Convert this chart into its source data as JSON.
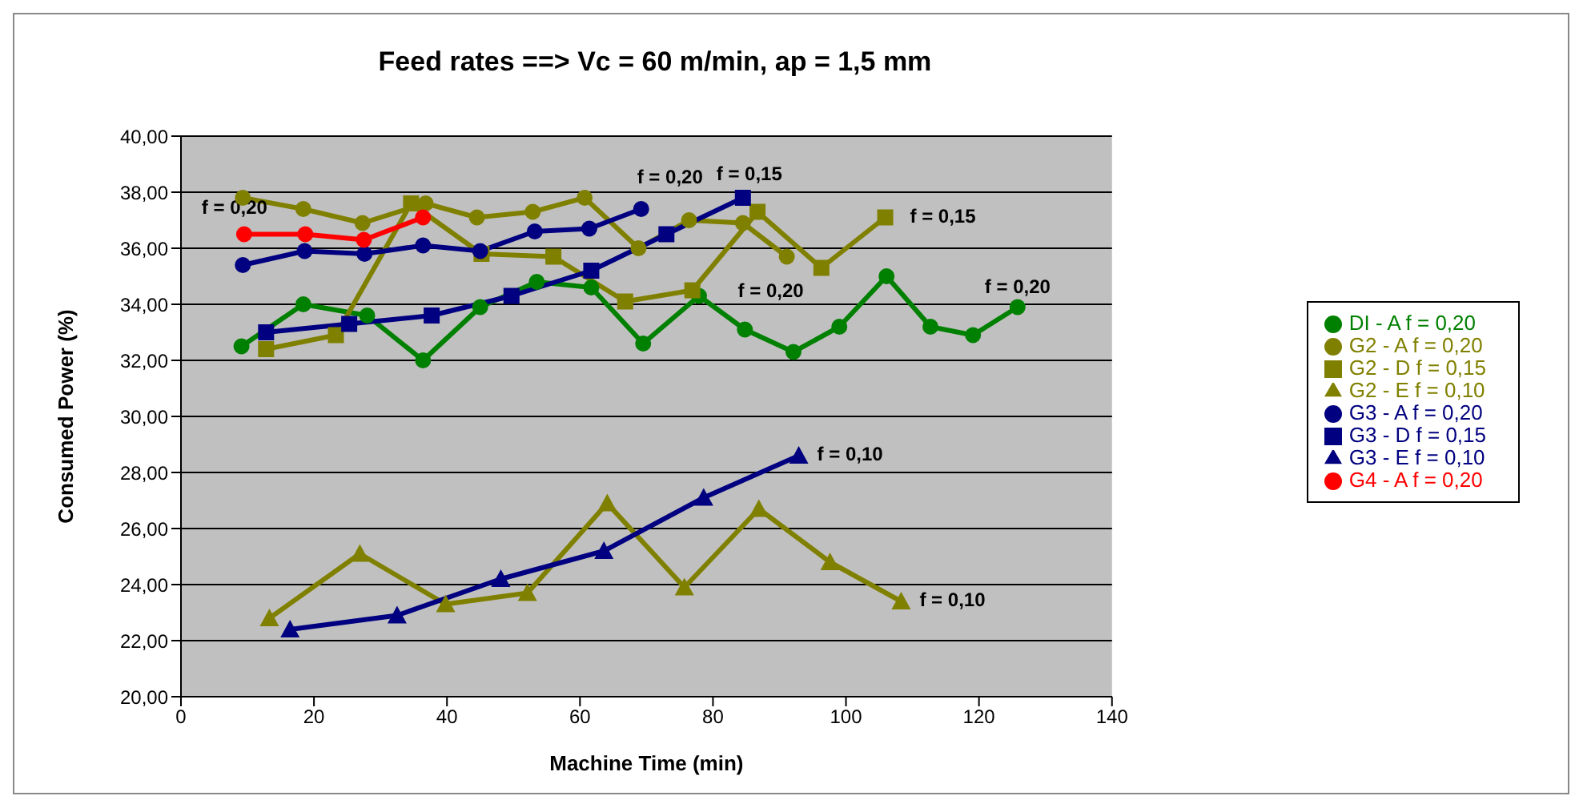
{
  "chart_data": {
    "type": "line",
    "title": "Feed rates ==> Vc = 60 m/min, ap = 1,5 mm",
    "xlabel": "Machine Time (min)",
    "ylabel": "Consumed Power (%)",
    "xlim": [
      0,
      140
    ],
    "xticks": [
      0,
      20,
      40,
      60,
      80,
      100,
      120,
      140
    ],
    "ylim": [
      20,
      40
    ],
    "yticks": [
      {
        "value": 20,
        "label": "20,00"
      },
      {
        "value": 22,
        "label": "22,00"
      },
      {
        "value": 24,
        "label": "24,00"
      },
      {
        "value": 26,
        "label": "26,00"
      },
      {
        "value": 28,
        "label": "28,00"
      },
      {
        "value": 30,
        "label": "30,00"
      },
      {
        "value": 32,
        "label": "32,00"
      },
      {
        "value": 34,
        "label": "34,00"
      },
      {
        "value": 36,
        "label": "36,00"
      },
      {
        "value": 38,
        "label": "38,00"
      },
      {
        "value": 40,
        "label": "40,00"
      }
    ],
    "grid": "y",
    "legend": "right",
    "series": [
      {
        "name": "DI - A f = 0,20",
        "color": "#008000",
        "marker": "circle",
        "x": [
          9.1,
          18.4,
          28.0,
          36.4,
          45.0,
          53.5,
          61.7,
          69.5,
          77.9,
          84.8,
          92.1,
          99.0,
          106.1,
          112.7,
          119.1,
          125.8
        ],
        "values": [
          32.5,
          34.0,
          33.6,
          32.0,
          33.9,
          34.8,
          34.6,
          32.6,
          34.3,
          33.1,
          32.3,
          33.2,
          35.0,
          33.2,
          32.9,
          33.9
        ]
      },
      {
        "name": "G2 - A f = 0,20",
        "color": "#808000",
        "marker": "circle",
        "x": [
          9.3,
          18.4,
          27.3,
          36.8,
          44.5,
          52.9,
          60.7,
          68.8,
          76.4,
          84.5,
          91.1
        ],
        "values": [
          37.8,
          37.4,
          36.9,
          37.6,
          37.1,
          37.3,
          37.8,
          36.0,
          37.0,
          36.9,
          35.7
        ]
      },
      {
        "name": "G2 - D f = 0,15",
        "color": "#808000",
        "marker": "square",
        "x": [
          12.8,
          23.3,
          34.6,
          45.2,
          56.0,
          66.8,
          76.9,
          86.7,
          96.3,
          105.9
        ],
        "values": [
          32.4,
          32.9,
          37.6,
          35.8,
          35.7,
          34.1,
          34.5,
          37.3,
          35.3,
          37.1
        ]
      },
      {
        "name": "G2 - E f = 0,10",
        "color": "#808000",
        "marker": "triangle",
        "x": [
          13.3,
          26.9,
          39.8,
          52.1,
          64.1,
          75.7,
          86.9,
          97.6,
          108.3
        ],
        "values": [
          22.8,
          25.1,
          23.3,
          23.7,
          26.9,
          23.9,
          26.7,
          24.8,
          23.4
        ]
      },
      {
        "name": "G3 - A f = 0,20",
        "color": "#000080",
        "marker": "circle",
        "x": [
          9.3,
          18.6,
          27.6,
          36.4,
          45.0,
          53.2,
          61.4,
          69.2
        ],
        "values": [
          35.4,
          35.9,
          35.8,
          36.1,
          35.9,
          36.6,
          36.7,
          37.4
        ]
      },
      {
        "name": "G3 - D f = 0,15",
        "color": "#000080",
        "marker": "square",
        "x": [
          12.8,
          25.3,
          37.7,
          49.7,
          61.7,
          73.0,
          84.5
        ],
        "values": [
          33.0,
          33.3,
          33.6,
          34.3,
          35.2,
          36.5,
          37.8
        ]
      },
      {
        "name": "G3 - E f = 0,10",
        "color": "#000080",
        "marker": "triangle",
        "x": [
          16.4,
          32.5,
          48.1,
          63.6,
          78.6,
          92.9
        ],
        "values": [
          22.4,
          22.9,
          24.2,
          25.2,
          27.1,
          28.6
        ]
      },
      {
        "name": "G4 - A f = 0,20",
        "color": "#ff0000",
        "marker": "circle",
        "x": [
          9.5,
          18.7,
          27.5,
          36.4
        ],
        "values": [
          36.5,
          36.5,
          36.3,
          37.1
        ]
      }
    ],
    "annotations": [
      {
        "text": "f = 0,20",
        "x": 9.5,
        "y": 36.5
      },
      {
        "text": "f = 0,20",
        "x": 69.2,
        "y": 37.4
      },
      {
        "text": "f = 0,15",
        "x": 84.5,
        "y": 37.8
      },
      {
        "text": "f = 0,15",
        "x": 105.9,
        "y": 37.1
      },
      {
        "text": "f = 0,20",
        "x": 91.1,
        "y": 35.7
      },
      {
        "text": "f = 0,20",
        "x": 125.8,
        "y": 33.9
      },
      {
        "text": "f = 0,10",
        "x": 92.9,
        "y": 28.6
      },
      {
        "text": "f = 0,10",
        "x": 108.3,
        "y": 23.4
      }
    ]
  }
}
